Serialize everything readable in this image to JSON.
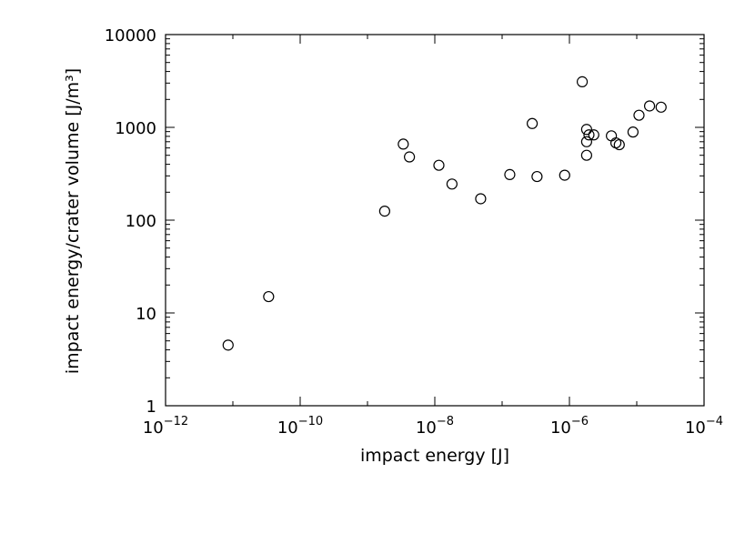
{
  "chart_data": {
    "type": "scatter",
    "title": "",
    "xlabel": "impact energy [J]",
    "ylabel": "impact energy/crater volume [J/m³]",
    "x_scale": "log",
    "y_scale": "log",
    "xlim": [
      1e-12,
      0.0001
    ],
    "ylim": [
      1,
      10000
    ],
    "grid": false,
    "legend": "none",
    "marker": "open-circle",
    "x_ticks": [
      {
        "mantissa": "10",
        "exp": "−12"
      },
      {
        "mantissa": "10",
        "exp": "−10"
      },
      {
        "mantissa": "10",
        "exp": "−8"
      },
      {
        "mantissa": "10",
        "exp": "−6"
      },
      {
        "mantissa": "10",
        "exp": "−4"
      }
    ],
    "y_ticks": [
      "1",
      "10",
      "100",
      "1000",
      "10000"
    ],
    "points": [
      {
        "x": 8.5e-12,
        "y": 4.5
      },
      {
        "x": 3.4e-11,
        "y": 15
      },
      {
        "x": 1.8e-09,
        "y": 125
      },
      {
        "x": 3.4e-09,
        "y": 660
      },
      {
        "x": 4.2e-09,
        "y": 480
      },
      {
        "x": 1.15e-08,
        "y": 390
      },
      {
        "x": 1.8e-08,
        "y": 245
      },
      {
        "x": 4.8e-08,
        "y": 170
      },
      {
        "x": 1.3e-07,
        "y": 310
      },
      {
        "x": 2.8e-07,
        "y": 1100
      },
      {
        "x": 3.3e-07,
        "y": 295
      },
      {
        "x": 8.5e-07,
        "y": 305
      },
      {
        "x": 1.55e-06,
        "y": 3100
      },
      {
        "x": 1.8e-06,
        "y": 950
      },
      {
        "x": 1.8e-06,
        "y": 700
      },
      {
        "x": 1.8e-06,
        "y": 500
      },
      {
        "x": 1.95e-06,
        "y": 830
      },
      {
        "x": 2.3e-06,
        "y": 830
      },
      {
        "x": 4.2e-06,
        "y": 810
      },
      {
        "x": 4.9e-06,
        "y": 680
      },
      {
        "x": 5.5e-06,
        "y": 650
      },
      {
        "x": 8.8e-06,
        "y": 890
      },
      {
        "x": 1.08e-05,
        "y": 1350
      },
      {
        "x": 1.55e-05,
        "y": 1700
      },
      {
        "x": 2.3e-05,
        "y": 1650
      }
    ]
  }
}
